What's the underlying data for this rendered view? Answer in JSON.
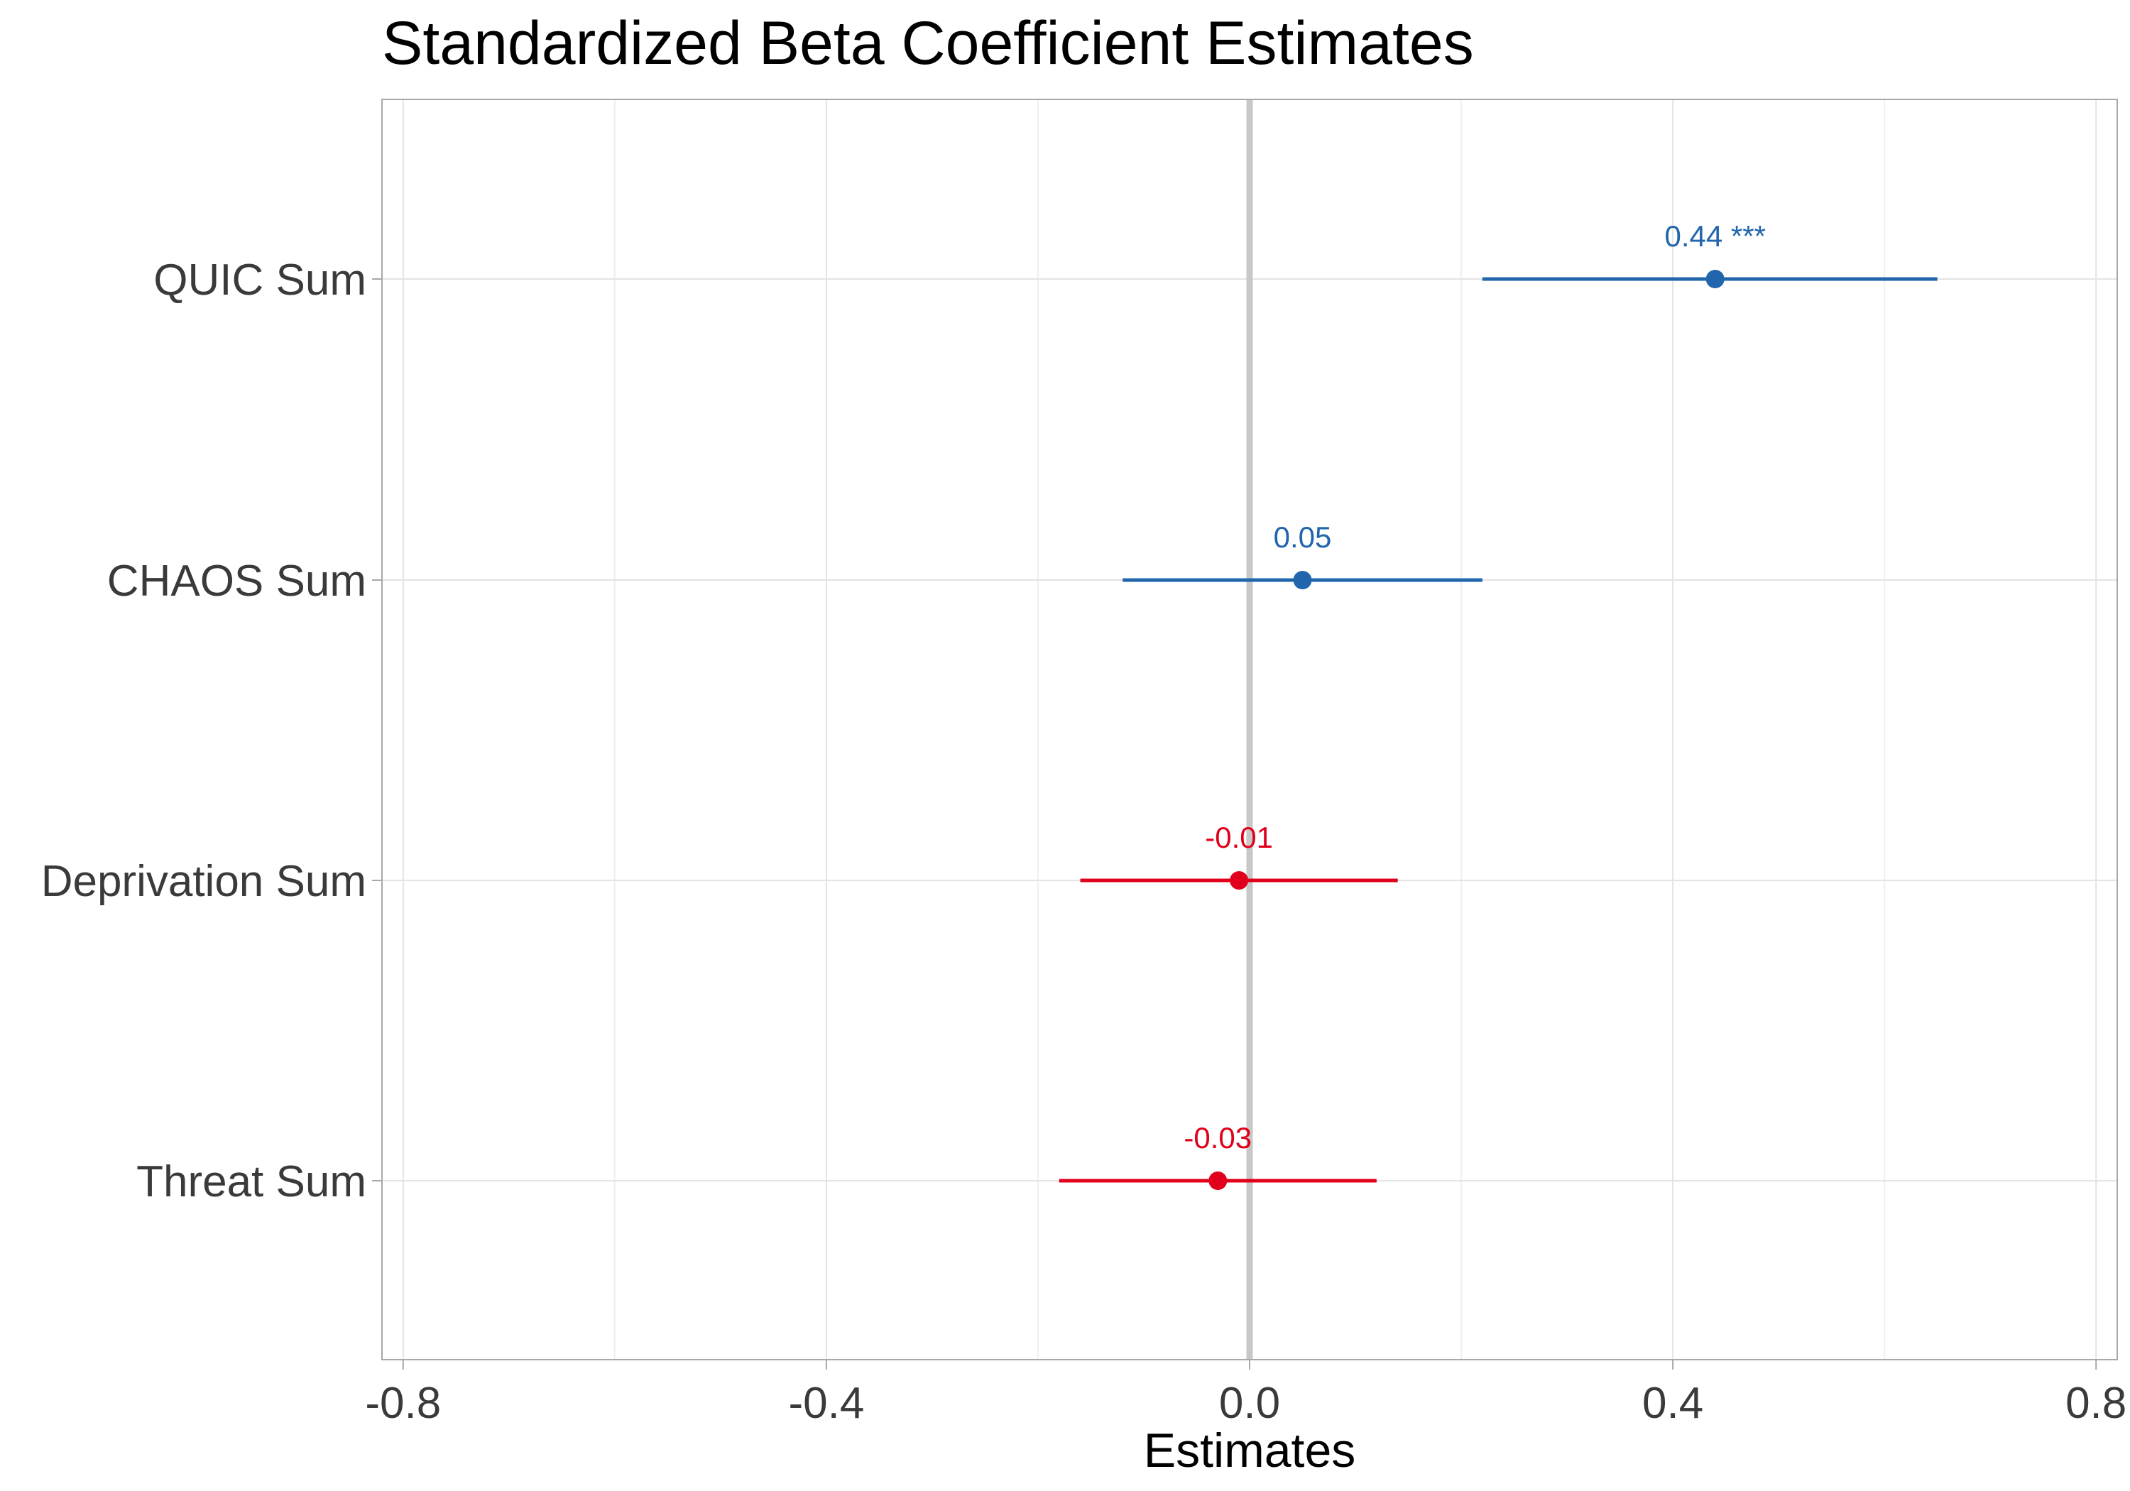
{
  "chart_data": {
    "type": "forest",
    "title": "Standardized Beta Coefficient Estimates",
    "xlabel": "Estimates",
    "ylabel": "",
    "xlim": [
      -0.82,
      0.82
    ],
    "x_ticks": [
      -0.8,
      -0.4,
      0.0,
      0.4,
      0.8
    ],
    "x_tick_labels": [
      "-0.8",
      "-0.4",
      "0.0",
      "0.4",
      "0.8"
    ],
    "reference_line": 0.0,
    "grid": true,
    "colors": {
      "positive": "#2166ac",
      "negative": "#e0001b",
      "reference": "#c8c8c8",
      "grid": "#e3e3e3",
      "frame": "#a8a8a8"
    },
    "terms": [
      {
        "label": "QUIC Sum",
        "estimate": 0.44,
        "ci_low": 0.22,
        "ci_high": 0.65,
        "text": "0.44 ***",
        "sign": "positive"
      },
      {
        "label": "CHAOS Sum",
        "estimate": 0.05,
        "ci_low": -0.12,
        "ci_high": 0.22,
        "text": "0.05",
        "sign": "positive"
      },
      {
        "label": "Deprivation Sum",
        "estimate": -0.01,
        "ci_low": -0.16,
        "ci_high": 0.14,
        "text": "-0.01",
        "sign": "negative"
      },
      {
        "label": "Threat Sum",
        "estimate": -0.03,
        "ci_low": -0.18,
        "ci_high": 0.12,
        "text": "-0.03",
        "sign": "negative"
      }
    ]
  }
}
